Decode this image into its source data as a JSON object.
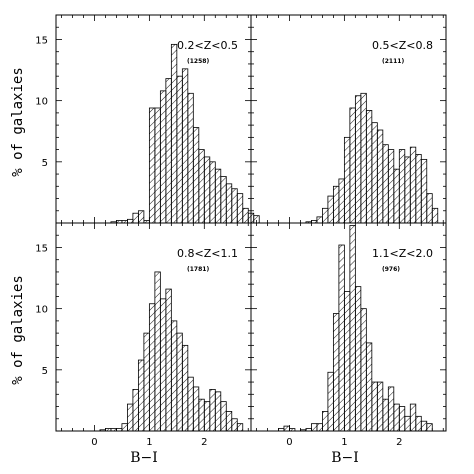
{
  "figure": {
    "ylabel": "% of galaxies",
    "xlabel": "B−I"
  },
  "chart_data": [
    {
      "type": "bar",
      "panel": "top-left",
      "label": "0.2<Z<0.5",
      "count": "(1258)",
      "xlim": [
        -0.7,
        2.85
      ],
      "ylim": [
        0,
        17
      ],
      "x_ticks": [
        0,
        1,
        2
      ],
      "y_ticks": [
        5,
        10,
        15
      ],
      "bin_width": 0.1,
      "bin_edges_start": 0.3,
      "values": [
        0.1,
        0.2,
        0.2,
        0.3,
        0.8,
        1.0,
        0.2,
        9.4,
        9.4,
        10.8,
        11.8,
        14.6,
        12.0,
        12.6,
        10.6,
        7.8,
        6.0,
        5.4,
        5.0,
        4.4,
        3.8,
        3.2,
        2.8,
        2.4,
        1.2,
        0.8,
        0.6
      ]
    },
    {
      "type": "bar",
      "panel": "top-right",
      "label": "0.5<Z<0.8",
      "count": "(2111)",
      "xlim": [
        -0.7,
        2.85
      ],
      "ylim": [
        0,
        17
      ],
      "x_ticks": [
        0,
        1,
        2
      ],
      "y_ticks": [
        5,
        10,
        15
      ],
      "bin_width": 0.1,
      "bin_edges_start": 0.3,
      "values": [
        0.1,
        0.2,
        0.5,
        1.2,
        2.2,
        3.0,
        3.6,
        7.0,
        9.4,
        10.4,
        10.6,
        9.2,
        8.2,
        7.6,
        6.4,
        6.0,
        4.4,
        6.0,
        5.4,
        6.2,
        5.6,
        5.2,
        2.4,
        1.2
      ]
    },
    {
      "type": "bar",
      "panel": "bottom-left",
      "label": "0.8<Z<1.1",
      "count": "(1781)",
      "xlim": [
        -0.7,
        2.85
      ],
      "ylim": [
        0,
        17
      ],
      "x_ticks": [
        0,
        1,
        2
      ],
      "y_ticks": [
        5,
        10,
        15
      ],
      "bin_width": 0.1,
      "bin_edges_start": 0.1,
      "values": [
        0.1,
        0.2,
        0.2,
        0.2,
        0.6,
        2.2,
        3.4,
        5.8,
        8.0,
        10.4,
        13.0,
        10.8,
        11.6,
        9.0,
        8.0,
        7.0,
        4.4,
        3.6,
        2.6,
        2.4,
        3.4,
        3.2,
        2.4,
        1.6,
        1.0,
        0.6
      ]
    },
    {
      "type": "bar",
      "panel": "bottom-right",
      "label": "1.1<Z<2.0",
      "count": "(976)",
      "xlim": [
        -0.7,
        2.85
      ],
      "ylim": [
        0,
        17
      ],
      "x_ticks": [
        0,
        1,
        2
      ],
      "y_ticks": [
        5,
        10,
        15
      ],
      "bin_width": 0.1,
      "bin_edges_start": -0.2,
      "values": [
        0.2,
        0.4,
        0.2,
        0.0,
        0.1,
        0.2,
        0.6,
        0.6,
        1.6,
        4.8,
        9.6,
        15.2,
        11.4,
        16.8,
        11.8,
        10.0,
        7.2,
        4.0,
        4.0,
        2.6,
        3.6,
        2.2,
        2.0,
        1.2,
        2.2,
        1.2,
        0.8,
        0.6
      ]
    }
  ]
}
